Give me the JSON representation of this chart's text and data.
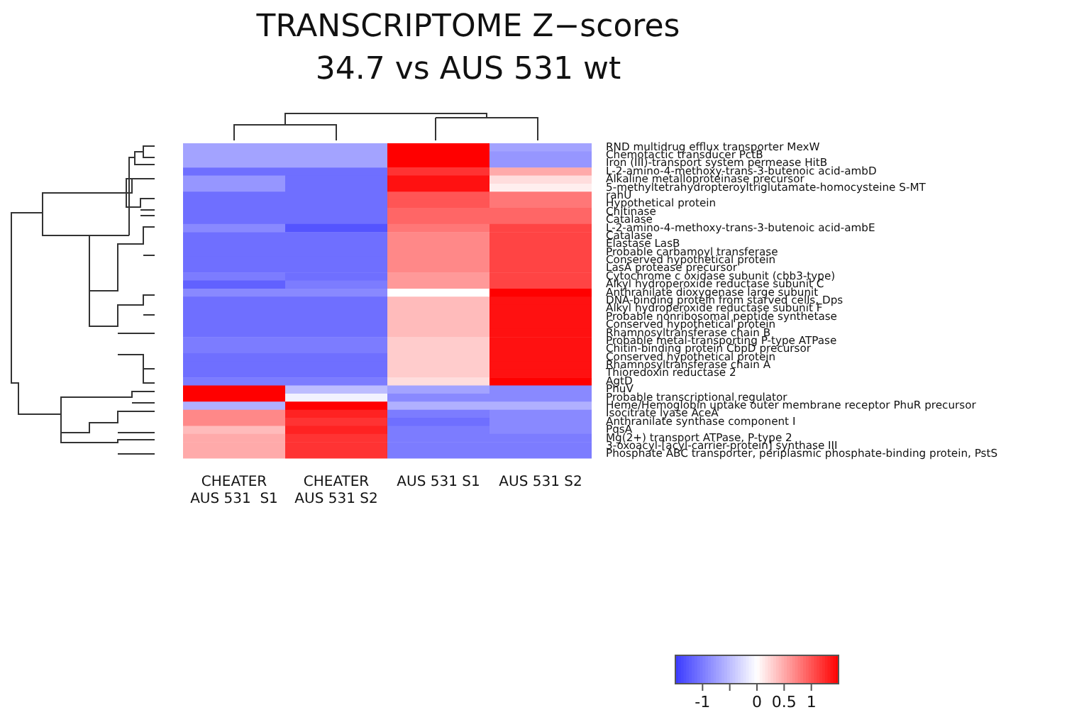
{
  "chart_data": {
    "type": "heatmap",
    "title": "TRANSCRIPTOME Z−scores",
    "subtitle": "34.7 vs AUS 531 wt",
    "categories": [
      "CHEATER\nAUS 531  S1",
      "CHEATER\nAUS 531 S2",
      "AUS 531 S1",
      "AUS 531 S2"
    ],
    "y_categories": [
      "RND multidrug efflux transporter MexW",
      "Chemotactic transducer PctB",
      "Iron (III)-transport system permease HitB",
      "L-2-amino-4-methoxy-trans-3-butenoic acid-ambD",
      "Alkaline metalloproteinase precursor",
      "5-methyltetrahydropteroyltriglutamate-homocysteine S-MT",
      "rahU",
      "Hypothetical protein",
      "Chitinase",
      "Catalase",
      "L-2-amino-4-methoxy-trans-3-butenoic acid-ambE",
      "Catalase",
      "Elastase LasB",
      "Probable carbamoyl transferase",
      "Conserved hypothetical protein",
      "LasA protease precursor",
      "Cytochrome c oxidase subunit (cbb3-type)",
      "Alkyl hydroperoxide reductase subunit C",
      "Anthranilate dioxygenase large subunit",
      "DNA-binding protein from starved cells, Dps",
      "Alkyl hydroperoxide reductase subunit F",
      "Probable nonribosomal peptide synthetase",
      "Conserved hypothetical protein",
      "Rhamnosyltransferase chain B",
      "Probable metal-transporting P-type ATPase",
      "Chitin-binding protein CbpD precursor",
      "Conserved hypothetical protein",
      "Rhamnosyltransferase chain A",
      "Thioredoxin reductase 2",
      "AgtD",
      "PhuV",
      "Probable transcriptional regulator",
      "Heme/Hemoglobin uptake outer membrane receptor PhuR precursor",
      "Isocitrate lyase AceA",
      "Anthranilate synthase component I",
      "PqsA",
      "Mg(2+) transport ATPase, P-type 2",
      "3-oxoacyl-[acyl-carrier-protein] synthase III",
      "Phosphate ABC transporter, periplasmic phosphate-binding protein, PstS"
    ],
    "cells": [
      [
        -0.7,
        -0.7,
        1.5,
        -0.7
      ],
      [
        -0.7,
        -0.7,
        1.5,
        -0.8
      ],
      [
        -0.7,
        -0.7,
        1.5,
        -0.8
      ],
      [
        -1.1,
        -1.1,
        1.2,
        0.5
      ],
      [
        -0.8,
        -1.1,
        1.4,
        0.2
      ],
      [
        -0.8,
        -1.1,
        1.4,
        0.1
      ],
      [
        -1.1,
        -1.1,
        1.0,
        0.8
      ],
      [
        -1.1,
        -1.1,
        1.0,
        0.8
      ],
      [
        -1.1,
        -1.1,
        0.9,
        0.9
      ],
      [
        -1.1,
        -1.1,
        0.9,
        0.9
      ],
      [
        -0.9,
        -1.3,
        0.8,
        1.1
      ],
      [
        -1.1,
        -1.1,
        0.7,
        1.1
      ],
      [
        -1.1,
        -1.1,
        0.7,
        1.1
      ],
      [
        -1.1,
        -1.1,
        0.7,
        1.1
      ],
      [
        -1.1,
        -1.1,
        0.7,
        1.1
      ],
      [
        -1.1,
        -1.1,
        0.7,
        1.1
      ],
      [
        -1.0,
        -1.1,
        0.6,
        1.1
      ],
      [
        -1.2,
        -1.0,
        0.6,
        1.1
      ],
      [
        -0.9,
        -0.9,
        0.0,
        1.5
      ],
      [
        -1.1,
        -1.1,
        0.4,
        1.4
      ],
      [
        -1.1,
        -1.1,
        0.4,
        1.4
      ],
      [
        -1.1,
        -1.1,
        0.4,
        1.4
      ],
      [
        -1.1,
        -1.1,
        0.4,
        1.4
      ],
      [
        -1.1,
        -1.1,
        0.4,
        1.4
      ],
      [
        -1.0,
        -1.0,
        0.3,
        1.4
      ],
      [
        -1.0,
        -1.0,
        0.3,
        1.4
      ],
      [
        -1.1,
        -1.1,
        0.3,
        1.4
      ],
      [
        -1.1,
        -1.1,
        0.3,
        1.4
      ],
      [
        -1.1,
        -1.1,
        0.3,
        1.4
      ],
      [
        -1.0,
        -1.0,
        0.2,
        1.5
      ],
      [
        1.5,
        -0.5,
        -0.7,
        -0.9
      ],
      [
        1.5,
        -0.1,
        -0.9,
        -0.9
      ],
      [
        -0.6,
        1.5,
        -0.6,
        -0.6
      ],
      [
        0.7,
        1.3,
        -1.0,
        -0.9
      ],
      [
        0.7,
        1.2,
        -1.1,
        -0.9
      ],
      [
        0.4,
        1.3,
        -1.0,
        -0.9
      ],
      [
        0.5,
        1.2,
        -1.0,
        -1.0
      ],
      [
        0.5,
        1.2,
        -1.0,
        -1.0
      ],
      [
        0.5,
        1.2,
        -1.0,
        -1.0
      ]
    ],
    "clim": [
      -1.5,
      1.5
    ],
    "cticks": [
      -1,
      {
        "value": -0.5,
        "label": null
      },
      0,
      0.5,
      1
    ]
  }
}
